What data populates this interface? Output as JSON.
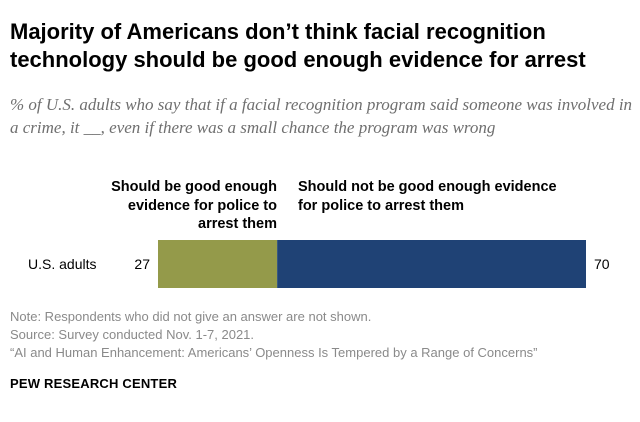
{
  "title": "Majority of Americans don’t think facial recognition technology should be good enough evidence for arrest",
  "subtitle": "% of U.S. adults who say that if a facial recognition program said someone was involved in a crime, it __, even if there was a small chance the program was wrong",
  "notes": {
    "note": "Note: Respondents who did not give an answer are not shown.",
    "source": "Source: Survey conducted Nov. 1-7, 2021.",
    "report": "“AI and Human Enhancement: Americans’ Openness Is Tempered by a Range of Concerns”"
  },
  "brand": "PEW RESEARCH CENTER",
  "colors": {
    "good_enough": "#949a4a",
    "not_good_enough": "#1f4275"
  },
  "chart_data": {
    "type": "bar",
    "orientation": "horizontal-stacked",
    "categories": [
      "U.S. adults"
    ],
    "series": [
      {
        "name": "Should be good enough evidence for police to arrest them",
        "values": [
          27
        ]
      },
      {
        "name": "Should not be good enough evidence for police to arrest them",
        "values": [
          70
        ]
      }
    ],
    "xlim": [
      0,
      100
    ],
    "grid": false,
    "legend": "top"
  }
}
